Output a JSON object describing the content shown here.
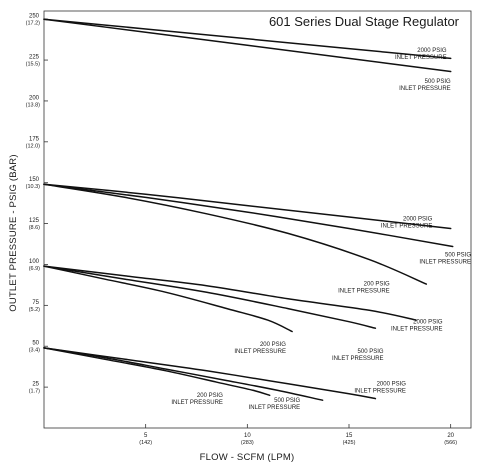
{
  "chart_data": {
    "type": "line",
    "title": "601 Series Dual Stage Regulator",
    "xlabel": "FLOW - SCFM (LPM)",
    "ylabel": "OUTLET PRESSURE - PSIG (BAR)",
    "xlim": [
      0,
      21
    ],
    "ylim": [
      0,
      255
    ],
    "grid": false,
    "x_ticks": [
      {
        "value": 5,
        "label": "5",
        "sublabel": "(142)"
      },
      {
        "value": 10,
        "label": "10",
        "sublabel": "(283)"
      },
      {
        "value": 15,
        "label": "15",
        "sublabel": "(425)"
      },
      {
        "value": 20,
        "label": "20",
        "sublabel": "(566)"
      }
    ],
    "y_ticks": [
      {
        "value": 25,
        "label": "25",
        "sublabel": "(1.7)"
      },
      {
        "value": 50,
        "label": "50",
        "sublabel": "(3.4)"
      },
      {
        "value": 75,
        "label": "75",
        "sublabel": "(5.2)"
      },
      {
        "value": 100,
        "label": "100",
        "sublabel": "(6.9)"
      },
      {
        "value": 125,
        "label": "125",
        "sublabel": "(8.6)"
      },
      {
        "value": 150,
        "label": "150",
        "sublabel": "(10.3)"
      },
      {
        "value": 175,
        "label": "175",
        "sublabel": "(12.0)"
      },
      {
        "value": 200,
        "label": "200",
        "sublabel": "(13.8)"
      },
      {
        "value": 225,
        "label": "225",
        "sublabel": "(15.5)"
      },
      {
        "value": 250,
        "label": "250",
        "sublabel": "(17.2)"
      }
    ],
    "series": [
      {
        "points": [
          [
            0,
            250
          ],
          [
            5,
            244
          ],
          [
            10,
            238
          ],
          [
            15,
            232
          ],
          [
            20,
            226
          ]
        ],
        "label_lines": [
          "2000 PSIG",
          "INLET PRESSURE"
        ],
        "label_at": [
          19.8,
          230
        ]
      },
      {
        "points": [
          [
            0,
            250
          ],
          [
            5,
            242
          ],
          [
            10,
            234
          ],
          [
            15,
            226
          ],
          [
            20,
            218
          ]
        ],
        "label_lines": [
          "500 PSIG",
          "INLET PRESSURE"
        ],
        "label_at": [
          20.0,
          211
        ]
      },
      {
        "points": [
          [
            0,
            149
          ],
          [
            5,
            143
          ],
          [
            10,
            136
          ],
          [
            15,
            129
          ],
          [
            20,
            122
          ]
        ],
        "label_lines": [
          "2000 PSIG",
          "INLET PRESSURE"
        ],
        "label_at": [
          19.1,
          127
        ]
      },
      {
        "points": [
          [
            0,
            149
          ],
          [
            5,
            141
          ],
          [
            10,
            132
          ],
          [
            15,
            122
          ],
          [
            20.1,
            111
          ]
        ],
        "label_lines": [
          "500 PSIG",
          "INLET PRESSURE"
        ],
        "label_at": [
          21.0,
          105
        ]
      },
      {
        "points": [
          [
            0,
            149
          ],
          [
            4,
            141
          ],
          [
            8,
            131
          ],
          [
            12,
            119
          ],
          [
            16,
            103
          ],
          [
            18.8,
            88
          ]
        ],
        "label_lines": [
          "200 PSIG",
          "INLET PRESSURE"
        ],
        "label_at": [
          17.0,
          87
        ]
      },
      {
        "points": [
          [
            0,
            99
          ],
          [
            4,
            93
          ],
          [
            8,
            87
          ],
          [
            12,
            79
          ],
          [
            16,
            72
          ],
          [
            18.3,
            66
          ]
        ],
        "label_lines": [
          "2000 PSIG",
          "INLET PRESSURE"
        ],
        "label_at": [
          19.6,
          64
        ]
      },
      {
        "points": [
          [
            0,
            99
          ],
          [
            4,
            91
          ],
          [
            8,
            83
          ],
          [
            12,
            73
          ],
          [
            15,
            65
          ],
          [
            16.3,
            61
          ]
        ],
        "label_lines": [
          "500 PSIG",
          "INLET PRESSURE"
        ],
        "label_at": [
          16.7,
          46
        ]
      },
      {
        "points": [
          [
            0,
            99
          ],
          [
            3,
            91
          ],
          [
            6,
            83
          ],
          [
            9,
            73
          ],
          [
            11,
            66
          ],
          [
            12.2,
            59
          ]
        ],
        "label_lines": [
          "200 PSIG",
          "INLET PRESSURE"
        ],
        "label_at": [
          11.9,
          50
        ]
      },
      {
        "points": [
          [
            0,
            49
          ],
          [
            4,
            42
          ],
          [
            8,
            35
          ],
          [
            12,
            27
          ],
          [
            15,
            21
          ],
          [
            16.3,
            18
          ]
        ],
        "label_lines": [
          "2000 PSIG",
          "INLET PRESSURE"
        ],
        "label_at": [
          17.8,
          26
        ]
      },
      {
        "points": [
          [
            0,
            49
          ],
          [
            3,
            43
          ],
          [
            6,
            36
          ],
          [
            9,
            29
          ],
          [
            11.5,
            23
          ],
          [
            13.7,
            17
          ]
        ],
        "label_lines": [
          "500 PSIG",
          "INLET PRESSURE"
        ],
        "label_at": [
          12.6,
          16
        ]
      },
      {
        "points": [
          [
            0,
            49
          ],
          [
            3,
            42
          ],
          [
            6,
            35
          ],
          [
            8.5,
            28
          ],
          [
            10.3,
            23
          ],
          [
            11.1,
            20
          ]
        ],
        "label_lines": [
          "200 PSIG",
          "INLET PRESSURE"
        ],
        "label_at": [
          8.8,
          19
        ]
      }
    ]
  }
}
